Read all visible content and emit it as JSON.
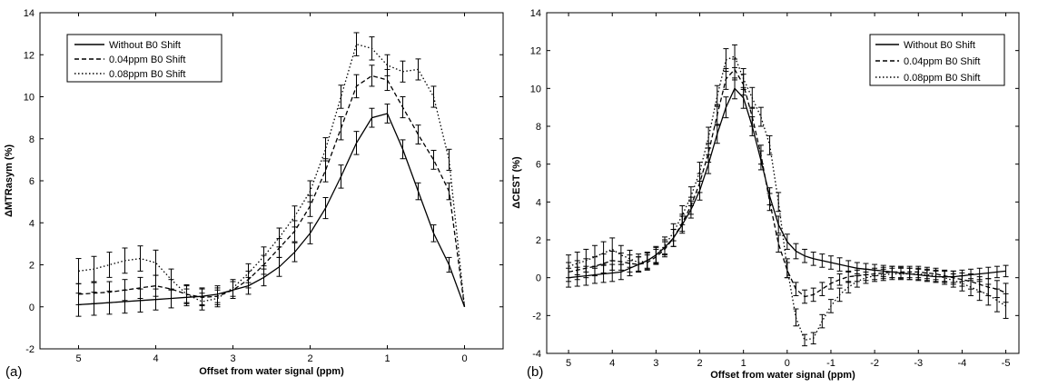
{
  "chart_data": [
    {
      "panel_label": "(a)",
      "type": "line",
      "xlabel": "Offset from water signal (ppm)",
      "ylabel": "ΔMTRasym (%)",
      "xlim": [
        5.5,
        -0.5
      ],
      "ylim": [
        -2,
        14
      ],
      "x_reversed": true,
      "xticks": [
        5,
        4,
        3,
        2,
        1,
        0
      ],
      "yticks": [
        -2,
        0,
        2,
        4,
        6,
        8,
        10,
        12,
        14
      ],
      "grid": false,
      "legend_position": "top-left",
      "series": [
        {
          "name": "Without B0 Shift",
          "dash": "solid",
          "x": [
            5.0,
            4.8,
            4.6,
            4.4,
            4.2,
            4.0,
            3.8,
            3.6,
            3.4,
            3.2,
            3.0,
            2.8,
            2.6,
            2.4,
            2.2,
            2.0,
            1.8,
            1.6,
            1.4,
            1.2,
            1.0,
            0.8,
            0.6,
            0.4,
            0.2,
            0.0
          ],
          "y": [
            0.1,
            0.15,
            0.2,
            0.25,
            0.3,
            0.35,
            0.4,
            0.45,
            0.5,
            0.6,
            0.8,
            1.0,
            1.4,
            1.9,
            2.6,
            3.5,
            4.7,
            6.2,
            7.8,
            9.0,
            9.2,
            7.5,
            5.5,
            3.5,
            2.0,
            0.0
          ],
          "err": [
            0.55,
            0.55,
            0.55,
            0.55,
            0.55,
            0.5,
            0.45,
            0.4,
            0.4,
            0.4,
            0.4,
            0.4,
            0.4,
            0.45,
            0.45,
            0.5,
            0.5,
            0.55,
            0.55,
            0.45,
            0.45,
            0.45,
            0.4,
            0.4,
            0.35,
            0.0
          ]
        },
        {
          "name": "0.04ppm B0 Shift",
          "dash": "dashed",
          "x": [
            5.0,
            4.8,
            4.6,
            4.4,
            4.2,
            4.0,
            3.8,
            3.6,
            3.4,
            3.2,
            3.0,
            2.8,
            2.6,
            2.4,
            2.2,
            2.0,
            1.8,
            1.6,
            1.4,
            1.2,
            1.0,
            0.8,
            0.6,
            0.4,
            0.2,
            0.0
          ],
          "y": [
            0.6,
            0.65,
            0.7,
            0.8,
            0.9,
            1.0,
            0.85,
            0.6,
            0.45,
            0.5,
            0.8,
            1.3,
            2.0,
            2.8,
            3.6,
            4.8,
            6.5,
            8.5,
            10.5,
            11.0,
            10.8,
            9.5,
            8.2,
            7.0,
            5.5,
            0.0
          ],
          "err": [
            0.5,
            0.5,
            0.5,
            0.5,
            0.5,
            0.5,
            0.45,
            0.4,
            0.4,
            0.4,
            0.4,
            0.4,
            0.45,
            0.45,
            0.5,
            0.5,
            0.55,
            0.55,
            0.55,
            0.5,
            0.5,
            0.5,
            0.45,
            0.45,
            0.4,
            0.0
          ]
        },
        {
          "name": "0.08ppm B0 Shift",
          "dash": "dotted",
          "x": [
            5.0,
            4.8,
            4.6,
            4.4,
            4.2,
            4.0,
            3.8,
            3.6,
            3.4,
            3.2,
            3.0,
            2.8,
            2.6,
            2.4,
            2.2,
            2.0,
            1.8,
            1.6,
            1.4,
            1.2,
            1.0,
            0.8,
            0.6,
            0.4,
            0.2,
            0.0
          ],
          "y": [
            1.7,
            1.8,
            2.0,
            2.2,
            2.3,
            2.1,
            1.3,
            0.6,
            0.25,
            0.4,
            0.9,
            1.6,
            2.4,
            3.3,
            4.3,
            5.5,
            7.5,
            10.0,
            12.5,
            12.3,
            11.5,
            11.2,
            11.3,
            10.0,
            7.0,
            0.0
          ],
          "err": [
            0.6,
            0.6,
            0.6,
            0.6,
            0.6,
            0.6,
            0.5,
            0.45,
            0.4,
            0.4,
            0.4,
            0.45,
            0.45,
            0.45,
            0.5,
            0.5,
            0.55,
            0.55,
            0.55,
            0.55,
            0.5,
            0.5,
            0.5,
            0.5,
            0.5,
            0.0
          ]
        }
      ]
    },
    {
      "panel_label": "(b)",
      "type": "line",
      "xlabel": "Offset from water signal (ppm)",
      "ylabel": "ΔCEST (%)",
      "xlim": [
        5.5,
        -5.3
      ],
      "ylim": [
        -4,
        14
      ],
      "x_reversed": true,
      "xticks": [
        5,
        4,
        3,
        2,
        1,
        0,
        -1,
        -2,
        -3,
        -4,
        -5
      ],
      "yticks": [
        -4,
        -2,
        0,
        2,
        4,
        6,
        8,
        10,
        12,
        14
      ],
      "grid": false,
      "legend_position": "top-right",
      "series": [
        {
          "name": "Without B0 Shift",
          "dash": "solid",
          "x": [
            5.0,
            4.8,
            4.6,
            4.4,
            4.2,
            4.0,
            3.8,
            3.6,
            3.4,
            3.2,
            3.0,
            2.8,
            2.6,
            2.4,
            2.2,
            2.0,
            1.8,
            1.6,
            1.4,
            1.2,
            1.0,
            0.8,
            0.6,
            0.4,
            0.2,
            0.0,
            -0.2,
            -0.4,
            -0.6,
            -0.8,
            -1.0,
            -1.2,
            -1.4,
            -1.6,
            -1.8,
            -2.0,
            -2.2,
            -2.4,
            -2.6,
            -2.8,
            -3.0,
            -3.2,
            -3.4,
            -3.6,
            -3.8,
            -4.0,
            -4.2,
            -4.4,
            -4.6,
            -4.8,
            -5.0
          ],
          "y": [
            0.0,
            0.05,
            0.1,
            0.15,
            0.2,
            0.25,
            0.3,
            0.5,
            0.7,
            0.9,
            1.2,
            1.6,
            2.1,
            2.8,
            3.6,
            4.6,
            6.0,
            7.6,
            9.0,
            10.0,
            9.5,
            8.0,
            6.2,
            4.3,
            2.8,
            1.9,
            1.4,
            1.15,
            1.0,
            0.9,
            0.8,
            0.7,
            0.6,
            0.5,
            0.45,
            0.4,
            0.35,
            0.3,
            0.25,
            0.2,
            0.15,
            0.1,
            0.05,
            0.05,
            0.05,
            0.1,
            0.15,
            0.2,
            0.25,
            0.3,
            0.35
          ],
          "err": [
            0.5,
            0.5,
            0.5,
            0.45,
            0.45,
            0.45,
            0.4,
            0.4,
            0.4,
            0.4,
            0.4,
            0.4,
            0.45,
            0.45,
            0.45,
            0.5,
            0.5,
            0.5,
            0.55,
            0.55,
            0.55,
            0.5,
            0.5,
            0.45,
            0.45,
            0.4,
            0.4,
            0.35,
            0.35,
            0.35,
            0.35,
            0.35,
            0.3,
            0.3,
            0.3,
            0.3,
            0.3,
            0.3,
            0.3,
            0.3,
            0.3,
            0.3,
            0.3,
            0.3,
            0.3,
            0.3,
            0.3,
            0.3,
            0.3,
            0.3,
            0.3
          ]
        },
        {
          "name": "0.04ppm B0 Shift",
          "dash": "dashed",
          "x": [
            5.0,
            4.8,
            4.6,
            4.4,
            4.2,
            4.0,
            3.8,
            3.6,
            3.4,
            3.2,
            3.0,
            2.8,
            2.6,
            2.4,
            2.2,
            2.0,
            1.8,
            1.6,
            1.4,
            1.2,
            1.0,
            0.8,
            0.6,
            0.4,
            0.2,
            0.0,
            -0.2,
            -0.4,
            -0.6,
            -0.8,
            -1.0,
            -1.2,
            -1.4,
            -1.6,
            -1.8,
            -2.0,
            -2.2,
            -2.4,
            -2.6,
            -2.8,
            -3.0,
            -3.2,
            -3.4,
            -3.6,
            -3.8,
            -4.0,
            -4.2,
            -4.4,
            -4.6,
            -4.8,
            -5.0
          ],
          "y": [
            0.3,
            0.4,
            0.5,
            0.6,
            0.75,
            0.9,
            0.85,
            0.75,
            0.7,
            0.8,
            1.1,
            1.5,
            2.1,
            2.9,
            3.8,
            5.0,
            6.6,
            8.6,
            10.5,
            11.0,
            10.2,
            8.5,
            6.5,
            4.0,
            1.8,
            0.4,
            -0.6,
            -1.0,
            -0.9,
            -0.6,
            -0.3,
            -0.1,
            0.05,
            0.1,
            0.15,
            0.2,
            0.25,
            0.3,
            0.3,
            0.3,
            0.3,
            0.25,
            0.2,
            0.1,
            0.0,
            -0.1,
            -0.2,
            -0.35,
            -0.5,
            -0.6,
            -0.8
          ],
          "err": [
            0.5,
            0.5,
            0.5,
            0.5,
            0.5,
            0.5,
            0.45,
            0.45,
            0.4,
            0.4,
            0.4,
            0.4,
            0.45,
            0.45,
            0.45,
            0.5,
            0.5,
            0.55,
            0.55,
            0.55,
            0.55,
            0.5,
            0.5,
            0.45,
            0.45,
            0.4,
            0.35,
            0.35,
            0.35,
            0.35,
            0.3,
            0.3,
            0.3,
            0.3,
            0.3,
            0.3,
            0.3,
            0.3,
            0.3,
            0.3,
            0.3,
            0.3,
            0.3,
            0.3,
            0.35,
            0.35,
            0.4,
            0.4,
            0.45,
            0.45,
            0.5
          ]
        },
        {
          "name": "0.08ppm B0 Shift",
          "dash": "dotted",
          "x": [
            5.0,
            4.8,
            4.6,
            4.4,
            4.2,
            4.0,
            3.8,
            3.6,
            3.4,
            3.2,
            3.0,
            2.8,
            2.6,
            2.4,
            2.2,
            2.0,
            1.8,
            1.6,
            1.4,
            1.2,
            1.0,
            0.8,
            0.6,
            0.4,
            0.2,
            0.0,
            -0.2,
            -0.4,
            -0.6,
            -0.8,
            -1.0,
            -1.2,
            -1.4,
            -1.6,
            -1.8,
            -2.0,
            -2.2,
            -2.4,
            -2.6,
            -2.8,
            -3.0,
            -3.2,
            -3.4,
            -3.6,
            -3.8,
            -4.0,
            -4.2,
            -4.4,
            -4.6,
            -4.8,
            -5.0
          ],
          "y": [
            0.6,
            0.75,
            0.9,
            1.1,
            1.3,
            1.5,
            1.2,
            1.0,
            0.8,
            0.9,
            1.2,
            1.7,
            2.4,
            3.3,
            4.3,
            5.6,
            7.4,
            9.6,
            11.5,
            11.7,
            10.5,
            9.5,
            8.5,
            7.0,
            4.0,
            0.5,
            -2.1,
            -3.3,
            -3.2,
            -2.3,
            -1.5,
            -0.9,
            -0.5,
            -0.2,
            0.0,
            0.1,
            0.15,
            0.2,
            0.2,
            0.2,
            0.2,
            0.15,
            0.1,
            0.0,
            -0.15,
            -0.3,
            -0.5,
            -0.7,
            -0.9,
            -1.2,
            -1.5
          ],
          "err": [
            0.6,
            0.6,
            0.6,
            0.6,
            0.6,
            0.6,
            0.5,
            0.45,
            0.45,
            0.45,
            0.45,
            0.45,
            0.45,
            0.5,
            0.5,
            0.5,
            0.55,
            0.55,
            0.6,
            0.6,
            0.55,
            0.55,
            0.5,
            0.5,
            0.5,
            0.5,
            0.45,
            0.3,
            0.3,
            0.35,
            0.35,
            0.35,
            0.3,
            0.3,
            0.3,
            0.3,
            0.3,
            0.3,
            0.3,
            0.3,
            0.3,
            0.3,
            0.3,
            0.35,
            0.35,
            0.4,
            0.45,
            0.5,
            0.55,
            0.6,
            0.65
          ]
        }
      ]
    }
  ]
}
